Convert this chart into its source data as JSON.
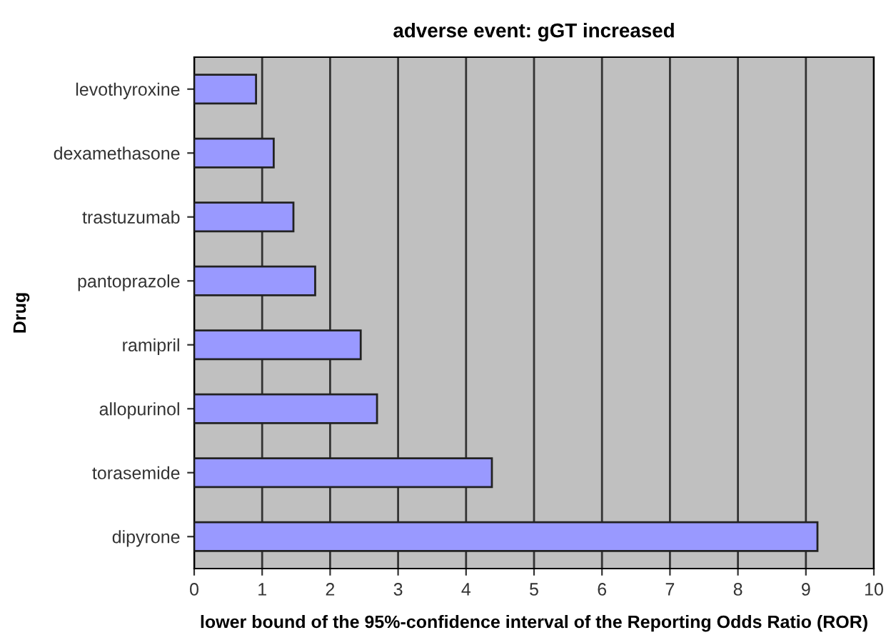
{
  "chart_data": {
    "type": "bar",
    "orientation": "horizontal",
    "title": "adverse event: gGT increased",
    "xlabel": "lower bound of the 95%-confidence interval of the Reporting Odds Ratio (ROR)",
    "ylabel": "Drug",
    "categories": [
      "levothyroxine",
      "dexamethasone",
      "trastuzumab",
      "pantoprazole",
      "ramipril",
      "allopurinol",
      "torasemide",
      "dipyrone"
    ],
    "values": [
      0.91,
      1.17,
      1.46,
      1.78,
      2.45,
      2.69,
      4.38,
      9.17
    ],
    "color": "#9999ff",
    "xlim": [
      0,
      10
    ],
    "xticks": [
      0,
      1,
      2,
      3,
      4,
      5,
      6,
      7,
      8,
      9,
      10
    ],
    "grid": "x",
    "legend": false
  }
}
